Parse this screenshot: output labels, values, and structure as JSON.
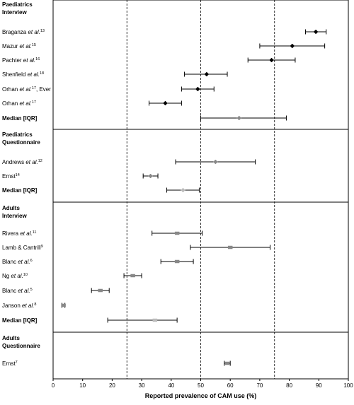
{
  "chart_data": {
    "type": "forest",
    "xlabel": "Reported prevalence of CAM use (%)",
    "xlim": [
      0,
      100
    ],
    "xticks": [
      0,
      10,
      20,
      30,
      40,
      50,
      60,
      70,
      80,
      90,
      100
    ],
    "reference_lines": [
      25,
      50,
      75
    ],
    "grid": false,
    "panels": [
      {
        "title": [
          "Paediatrics",
          "Interview"
        ],
        "rows": [
          {
            "label": "Braganza",
            "sup": "13",
            "et_al": true,
            "suffix": "",
            "value": 89,
            "low": 85.5,
            "high": 92.5,
            "marker": "diamond",
            "color": "#000000",
            "bold": false
          },
          {
            "label": "Mazur",
            "sup": "15",
            "et_al": true,
            "suffix": "",
            "value": 81,
            "low": 70,
            "high": 92,
            "marker": "diamond",
            "color": "#000000",
            "bold": false
          },
          {
            "label": "Pachter",
            "sup": "16",
            "et_al": true,
            "suffix": "",
            "value": 74,
            "low": 66,
            "high": 82,
            "marker": "diamond",
            "color": "#000000",
            "bold": false
          },
          {
            "label": "Shenfield",
            "sup": "18",
            "et_al": true,
            "suffix": "",
            "value": 52,
            "low": 44.5,
            "high": 59,
            "marker": "diamond",
            "color": "#000000",
            "bold": false
          },
          {
            "label": "Orhan",
            "sup": "17",
            "et_al": true,
            "suffix": ", Ever",
            "value": 49,
            "low": 43.5,
            "high": 54.5,
            "marker": "diamond",
            "color": "#000000",
            "bold": false
          },
          {
            "label": "Orhan",
            "sup": "17",
            "et_al": true,
            "suffix": "",
            "value": 38,
            "low": 32.5,
            "high": 43.5,
            "marker": "diamond",
            "color": "#000000",
            "bold": false
          },
          {
            "label": "Median [IQR]",
            "sup": "",
            "et_al": false,
            "suffix": "",
            "value": 63,
            "low": 50,
            "high": 79,
            "marker": "diamond",
            "color": "#888888",
            "bold": true
          }
        ]
      },
      {
        "title": [
          "Paediatrics",
          "Questionnaire"
        ],
        "rows": [
          {
            "label": "Andrews",
            "sup": "12",
            "et_al": true,
            "suffix": "",
            "value": 55,
            "low": 41.5,
            "high": 68.5,
            "marker": "diamond",
            "color": "#888888",
            "bold": false
          },
          {
            "label": "Ernst",
            "sup": "14",
            "et_al": false,
            "suffix": "",
            "value": 33,
            "low": 30.5,
            "high": 35.5,
            "marker": "diamond",
            "color": "#888888",
            "bold": false
          },
          {
            "label": "Median [IQR]",
            "sup": "",
            "et_al": false,
            "suffix": "",
            "value": 44,
            "low": 38.5,
            "high": 49.5,
            "marker": "diamond",
            "color": "#bbbbbb",
            "bold": true
          }
        ]
      },
      {
        "title": [
          "Adults",
          "Interview"
        ],
        "rows": [
          {
            "label": "Rivera",
            "sup": "11",
            "et_al": true,
            "suffix": "",
            "value": 42,
            "low": 33.5,
            "high": 50.5,
            "marker": "square",
            "color": "#888888",
            "bold": false
          },
          {
            "label": "Lamb & Cantrill",
            "sup": "9",
            "et_al": false,
            "suffix": "",
            "value": 60,
            "low": 46.5,
            "high": 73.5,
            "marker": "square",
            "color": "#888888",
            "bold": false
          },
          {
            "label": "Blanc",
            "sup": "6",
            "et_al": true,
            "suffix": "",
            "value": 42,
            "low": 36.5,
            "high": 47.5,
            "marker": "square",
            "color": "#888888",
            "bold": false
          },
          {
            "label": "Ng",
            "sup": "10",
            "et_al": true,
            "suffix": "",
            "value": 27,
            "low": 24,
            "high": 30,
            "marker": "square",
            "color": "#888888",
            "bold": false
          },
          {
            "label": "Blanc",
            "sup": "5",
            "et_al": true,
            "suffix": "",
            "value": 16,
            "low": 13,
            "high": 19,
            "marker": "square",
            "color": "#888888",
            "bold": false
          },
          {
            "label": "Janson",
            "sup": "8",
            "et_al": true,
            "suffix": "",
            "value": 3.5,
            "low": 3,
            "high": 4,
            "marker": "square",
            "color": "#888888",
            "bold": false
          },
          {
            "label": "Median [IQR]",
            "sup": "",
            "et_al": false,
            "suffix": "",
            "value": 34.5,
            "low": 18.5,
            "high": 42,
            "marker": "square",
            "color": "#bbbbbb",
            "bold": true
          }
        ]
      },
      {
        "title": [
          "Adults",
          "Questionnaire"
        ],
        "rows": [
          {
            "label": "Ernst",
            "sup": "7",
            "et_al": false,
            "suffix": "",
            "value": 59,
            "low": 58,
            "high": 60,
            "marker": "square",
            "color": "#888888",
            "bold": false
          }
        ]
      }
    ]
  }
}
